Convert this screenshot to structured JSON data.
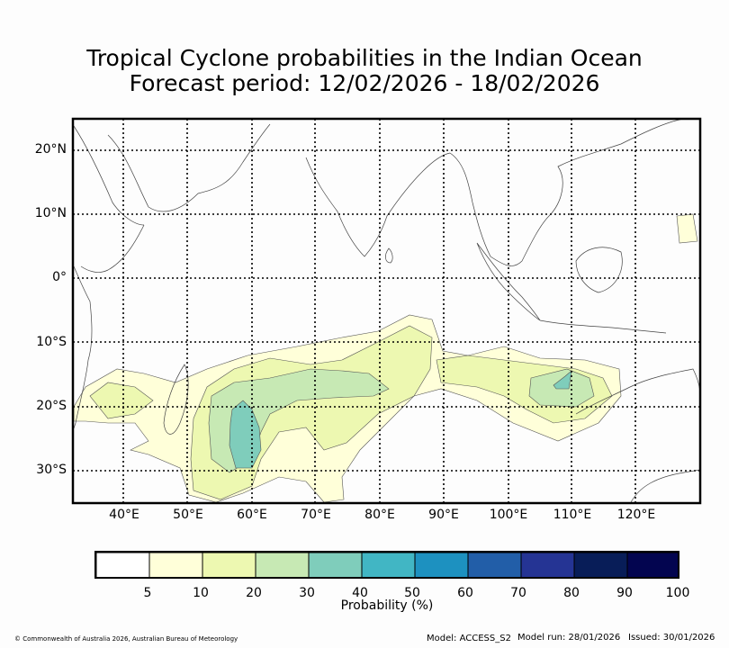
{
  "title": {
    "line1": "Tropical Cyclone probabilities in the Indian Ocean",
    "line2": "Forecast period: 12/02/2026 - 18/02/2026"
  },
  "map": {
    "lat_labels": [
      "20°N",
      "10°N",
      "0°",
      "10°S",
      "20°S",
      "30°S"
    ],
    "lon_labels": [
      "40°E",
      "50°E",
      "60°E",
      "70°E",
      "80°E",
      "90°E",
      "100°E",
      "110°E",
      "120°E"
    ],
    "lon_range": [
      32,
      130
    ],
    "lat_range": [
      -35,
      25
    ],
    "gridline_style": "dotted"
  },
  "colorbar": {
    "title": "Probability (%)",
    "colors": [
      "#ffffff",
      "#ffffd9",
      "#edf8b1",
      "#c7e9b4",
      "#7fcdbb",
      "#41b6c4",
      "#1d91c0",
      "#225ea8",
      "#253494",
      "#081d58",
      "#030550"
    ],
    "tick_labels": [
      "5",
      "10",
      "20",
      "30",
      "40",
      "50",
      "60",
      "70",
      "80",
      "90",
      "100"
    ]
  },
  "footer": {
    "copyright": "© Commonwealth of Australia 2026, Australian Bureau of Meteorology",
    "model": "Model: ACCESS_S2",
    "model_run": "Model run: 28/01/2026",
    "issued": "Issued: 30/01/2026"
  }
}
